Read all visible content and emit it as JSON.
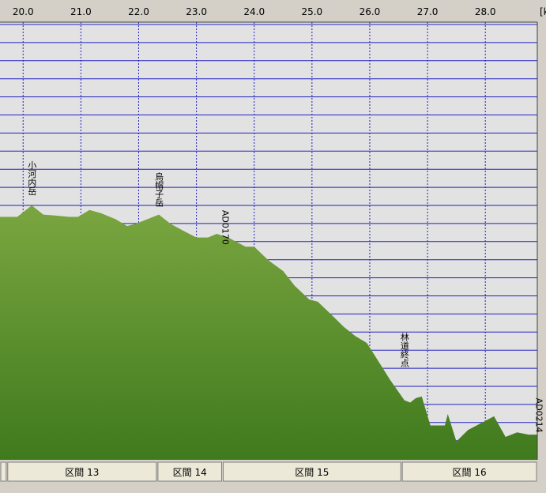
{
  "chart_data": {
    "type": "area",
    "x_ticks": [
      "20.0",
      "21.0",
      "22.0",
      "23.0",
      "24.0",
      "25.0",
      "26.0",
      "27.0",
      "28.0"
    ],
    "x_tick_partial": "[k",
    "xlim": [
      19.6,
      28.9
    ],
    "colors": {
      "fill_top": "#7aa640",
      "fill_bottom": "#3f7a1d",
      "grid": "#2020c0",
      "plot_bg": "#e2e2e2"
    },
    "profile": [
      [
        19.6,
        0.5
      ],
      [
        19.9,
        0.5
      ],
      [
        20.15,
        0.75
      ],
      [
        20.35,
        0.55
      ],
      [
        20.55,
        0.53
      ],
      [
        20.8,
        0.5
      ],
      [
        20.95,
        0.5
      ],
      [
        21.15,
        0.65
      ],
      [
        21.35,
        0.58
      ],
      [
        21.6,
        0.45
      ],
      [
        21.8,
        0.3
      ],
      [
        21.95,
        0.35
      ],
      [
        22.35,
        0.55
      ],
      [
        22.55,
        0.35
      ],
      [
        22.8,
        0.18
      ],
      [
        23.0,
        0.05
      ],
      [
        23.2,
        0.05
      ],
      [
        23.35,
        0.13
      ],
      [
        23.55,
        0.05
      ],
      [
        23.85,
        -0.15
      ],
      [
        24.0,
        -0.15
      ],
      [
        24.25,
        -0.45
      ],
      [
        24.5,
        -0.68
      ],
      [
        24.7,
        -1.0
      ],
      [
        24.95,
        -1.3
      ],
      [
        25.1,
        -1.35
      ],
      [
        25.35,
        -1.65
      ],
      [
        25.55,
        -1.9
      ],
      [
        25.75,
        -2.1
      ],
      [
        25.95,
        -2.25
      ],
      [
        26.2,
        -2.75
      ],
      [
        26.35,
        -3.05
      ],
      [
        26.6,
        -3.5
      ],
      [
        26.7,
        -3.55
      ],
      [
        26.8,
        -3.45
      ],
      [
        26.9,
        -3.42
      ],
      [
        27.05,
        -4.05
      ],
      [
        27.3,
        -4.05
      ],
      [
        27.35,
        -3.8
      ],
      [
        27.5,
        -4.4
      ],
      [
        27.7,
        -4.15
      ],
      [
        28.15,
        -3.85
      ],
      [
        28.35,
        -4.3
      ],
      [
        28.55,
        -4.2
      ],
      [
        28.75,
        -4.25
      ],
      [
        28.9,
        -4.25
      ]
    ],
    "ylim": [
      -4.8,
      4.75
    ],
    "waypoints": [
      {
        "label": "小河内岳",
        "x": 20.15,
        "y": 1.35
      },
      {
        "label": "烏帽子岳",
        "x": 22.35,
        "y": 1.1
      },
      {
        "label": "AD0170",
        "x": 23.45,
        "y": 0.65
      },
      {
        "label": "林道終点",
        "x": 26.6,
        "y": -2.4
      },
      {
        "label": "AD0214",
        "x": 28.88,
        "y": -3.45
      }
    ],
    "sections": [
      {
        "label": "",
        "x0": 19.6,
        "x1": 19.72
      },
      {
        "label": "区間 13",
        "x0": 19.72,
        "x1": 22.32
      },
      {
        "label": "区間 14",
        "x0": 22.32,
        "x1": 23.45
      },
      {
        "label": "区間 15",
        "x0": 23.45,
        "x1": 26.55
      },
      {
        "label": "区間 16",
        "x0": 26.55,
        "x1": 28.9
      }
    ]
  }
}
